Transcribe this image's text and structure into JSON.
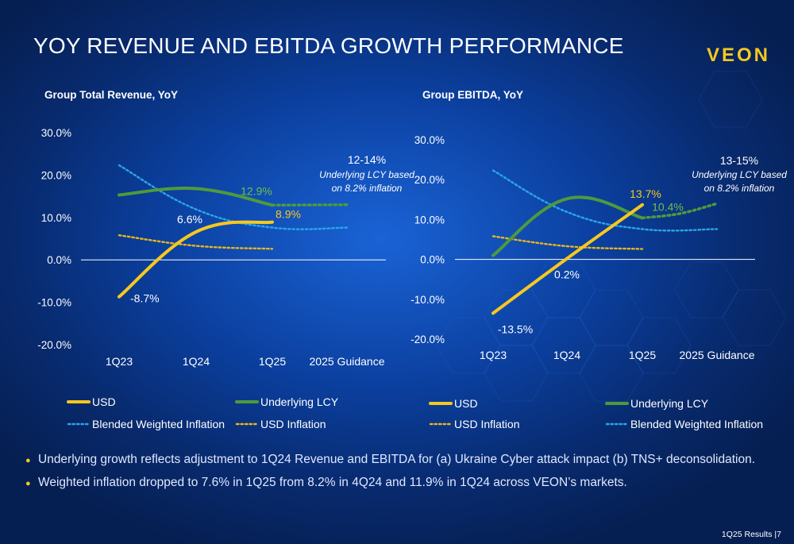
{
  "page": {
    "title": "YOY REVENUE AND EBITDA GROWTH PERFORMANCE",
    "logo": "VEON",
    "footer": "1Q25 Results |7",
    "bullets": [
      "Underlying growth reflects adjustment to 1Q24 Revenue and EBITDA for (a) Ukraine Cyber attack impact (b) TNS+ deconsolidation.",
      "Weighted inflation dropped to 7.6% in 1Q25 from 8.2% in 4Q24 and 11.9% in 1Q24 across VEON’s markets."
    ]
  },
  "colors": {
    "usd": "#f6c81f",
    "lcy": "#4e9a3c",
    "lcy_label": "#6cc04a",
    "blended": "#2aa6e8",
    "usd_inflation": "#e8b51f",
    "axis": "#ffffff"
  },
  "chart_data": [
    {
      "type": "line",
      "title": "Group Total Revenue, YoY",
      "categories": [
        "1Q23",
        "1Q24",
        "1Q25",
        "2025 Guidance"
      ],
      "yticks": [
        "30.0%",
        "20.0%",
        "10.0%",
        "0.0%",
        "-10.0%",
        "-20.0%"
      ],
      "ylim": [
        -20,
        30
      ],
      "series": [
        {
          "name": "USD",
          "style": "solid",
          "values": [
            -8.7,
            6.6,
            8.9,
            null
          ]
        },
        {
          "name": "Underlying LCY",
          "style": "solid",
          "values": [
            15.3,
            16.8,
            12.9,
            null
          ],
          "projection": [
            12.9,
            13.0
          ]
        },
        {
          "name": "Blended Weighted Inflation",
          "style": "dotted",
          "values": [
            22.3,
            11.9,
            7.6,
            7.6
          ]
        },
        {
          "name": "USD Inflation",
          "style": "dotted",
          "values": [
            5.8,
            3.3,
            2.6,
            null
          ]
        }
      ],
      "data_labels": [
        {
          "text": "-8.7%",
          "series": "USD",
          "index": 0
        },
        {
          "text": "6.6%",
          "series": "USD",
          "index": 1
        },
        {
          "text": "8.9%",
          "series": "USD",
          "index": 2
        },
        {
          "text": "12.9%",
          "series": "Underlying LCY",
          "index": 2
        }
      ],
      "guidance": {
        "range": "12-14%",
        "note_line1": "Underlying LCY based",
        "note_line2": "on 8.2% inflation"
      },
      "legend": [
        "USD",
        "Underlying LCY",
        "Blended Weighted Inflation",
        "USD Inflation"
      ]
    },
    {
      "type": "line",
      "title": "Group EBITDA, YoY",
      "categories": [
        "1Q23",
        "1Q24",
        "1Q25",
        "2025 Guidance"
      ],
      "yticks": [
        "30.0%",
        "20.0%",
        "10.0%",
        "0.0%",
        "-10.0%",
        "-20.0%"
      ],
      "ylim": [
        -20,
        30
      ],
      "series": [
        {
          "name": "USD",
          "style": "solid",
          "values": [
            -13.5,
            0.2,
            13.7,
            null
          ]
        },
        {
          "name": "Underlying LCY",
          "style": "solid",
          "values": [
            1.0,
            15.2,
            10.4,
            null
          ],
          "projection": [
            10.4,
            14.0
          ]
        },
        {
          "name": "Blended Weighted Inflation",
          "style": "dotted",
          "values": [
            22.3,
            11.9,
            7.6,
            7.6
          ]
        },
        {
          "name": "USD Inflation",
          "style": "dotted",
          "values": [
            5.8,
            3.3,
            2.6,
            null
          ]
        }
      ],
      "data_labels": [
        {
          "text": "-13.5%",
          "series": "USD",
          "index": 0
        },
        {
          "text": "0.2%",
          "series": "USD",
          "index": 1
        },
        {
          "text": "13.7%",
          "series": "USD",
          "index": 2
        },
        {
          "text": "10.4%",
          "series": "Underlying LCY",
          "index": 2
        }
      ],
      "guidance": {
        "range": "13-15%",
        "note_line1": "Underlying LCY based",
        "note_line2": "on 8.2% inflation"
      },
      "legend": [
        "USD",
        "Underlying LCY",
        "USD Inflation",
        "Blended Weighted Inflation"
      ]
    }
  ]
}
